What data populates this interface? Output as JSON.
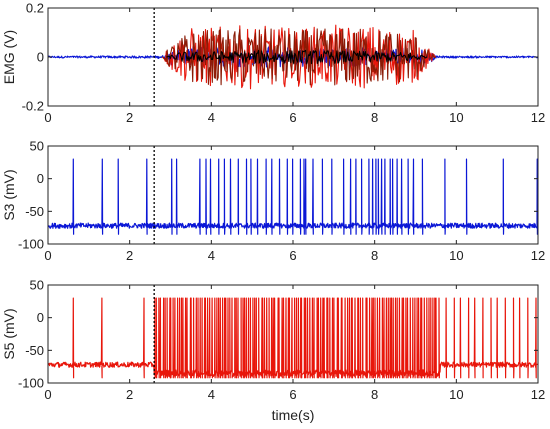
{
  "colors": {
    "blue": "#0b17d6",
    "red": "#e8160b",
    "darkred": "#8a1a05",
    "black": "#000000",
    "frame": "#222222"
  },
  "chart_data": [
    {
      "type": "line",
      "ylabel": "EMG (V)",
      "xlim": [
        0,
        12
      ],
      "ylim": [
        -0.2,
        0.2
      ],
      "xticks": [
        "0",
        "2",
        "4",
        "6",
        "8",
        "10",
        "12"
      ],
      "yticks": [
        "-0.2",
        "0",
        "0.2"
      ],
      "grid": false,
      "marker_line_x": 2.6,
      "series": [
        {
          "color": "#0b17d6",
          "points": [
            [
              0,
              0
            ],
            [
              1,
              0
            ],
            [
              2,
              0
            ],
            [
              2.6,
              0
            ],
            [
              3.0,
              0.02
            ],
            [
              4,
              0.03
            ],
            [
              5,
              0.02
            ],
            [
              6,
              0.03
            ],
            [
              7,
              0.02
            ],
            [
              8,
              0.03
            ],
            [
              9,
              0.02
            ],
            [
              9.5,
              0
            ],
            [
              12,
              0
            ]
          ],
          "noise_amp": [
            [
              0,
              0.004
            ],
            [
              2.9,
              0.005
            ],
            [
              3.0,
              0.02
            ],
            [
              9.4,
              0.02
            ],
            [
              9.5,
              0.004
            ],
            [
              12,
              0.004
            ]
          ]
        },
        {
          "color": "#e8160b",
          "envelope": [
            [
              2.8,
              0.0
            ],
            [
              3.0,
              0.06
            ],
            [
              3.5,
              0.12
            ],
            [
              5,
              0.13
            ],
            [
              6,
              0.12
            ],
            [
              7,
              0.13
            ],
            [
              8,
              0.13
            ],
            [
              9,
              0.11
            ],
            [
              9.3,
              0.04
            ],
            [
              9.5,
              0
            ]
          ],
          "min": -0.13,
          "max": 0.13
        },
        {
          "color": "#8a1a05",
          "envelope": [
            [
              2.8,
              0.0
            ],
            [
              3.0,
              0.05
            ],
            [
              3.5,
              0.11
            ],
            [
              5,
              0.12
            ],
            [
              6,
              0.11
            ],
            [
              7,
              0.12
            ],
            [
              8,
              0.12
            ],
            [
              9,
              0.1
            ],
            [
              9.3,
              0.03
            ],
            [
              9.5,
              0
            ]
          ],
          "min": -0.13,
          "max": 0.13
        },
        {
          "color": "#000000",
          "envelope": [
            [
              2.9,
              0.0
            ],
            [
              3.2,
              0.02
            ],
            [
              6,
              0.03
            ],
            [
              9,
              0.02
            ],
            [
              9.3,
              0
            ]
          ],
          "min": -0.05,
          "max": 0.05
        }
      ]
    },
    {
      "type": "line",
      "ylabel": "S3 (mV)",
      "xlim": [
        0,
        12
      ],
      "ylim": [
        -100,
        50
      ],
      "xticks": [
        "0",
        "2",
        "4",
        "6",
        "8",
        "10",
        "12"
      ],
      "yticks": [
        "-100",
        "-50",
        "0",
        "50"
      ],
      "grid": false,
      "marker_line_x": 2.6,
      "series": [
        {
          "color": "#0b17d6",
          "baseline": -72,
          "spike_peak": 30,
          "spike_trough": -85,
          "spike_times": [
            0.62,
            1.33,
            1.72,
            2.42,
            3.03,
            3.15,
            3.72,
            3.87,
            3.98,
            4.18,
            4.32,
            4.47,
            4.66,
            4.86,
            4.97,
            5.13,
            5.34,
            5.48,
            5.67,
            5.86,
            5.99,
            6.18,
            6.27,
            6.31,
            6.49,
            6.72,
            6.95,
            7.24,
            7.41,
            7.54,
            7.68,
            7.86,
            7.95,
            8.03,
            8.09,
            8.17,
            8.25,
            8.38,
            8.44,
            8.55,
            8.66,
            8.82,
            8.95,
            9.17,
            9.72,
            10.25,
            11.15,
            11.98
          ]
        }
      ]
    },
    {
      "type": "line",
      "ylabel": "S5 (mV)",
      "xlabel": "time(s)",
      "xlim": [
        0,
        12
      ],
      "ylim": [
        -100,
        50
      ],
      "xticks": [
        "0",
        "2",
        "4",
        "6",
        "8",
        "10",
        "12"
      ],
      "yticks": [
        "-100",
        "-50",
        "0",
        "50"
      ],
      "grid": false,
      "marker_line_x": 2.6,
      "series": [
        {
          "color": "#e8160b",
          "baseline": -72,
          "burst_baseline": -85,
          "spike_peak": 30,
          "spike_trough": -92,
          "burst_start": 2.6,
          "burst_end": 9.6,
          "spike_times_pre": [
            0.62,
            1.32,
            2.35
          ],
          "burst_density_per_s": 20,
          "spike_times_post": [
            9.75,
            9.95,
            10.1,
            10.3,
            10.45,
            10.65,
            10.85,
            11.0,
            11.2,
            11.4,
            11.55,
            11.75,
            11.95
          ]
        }
      ]
    }
  ]
}
